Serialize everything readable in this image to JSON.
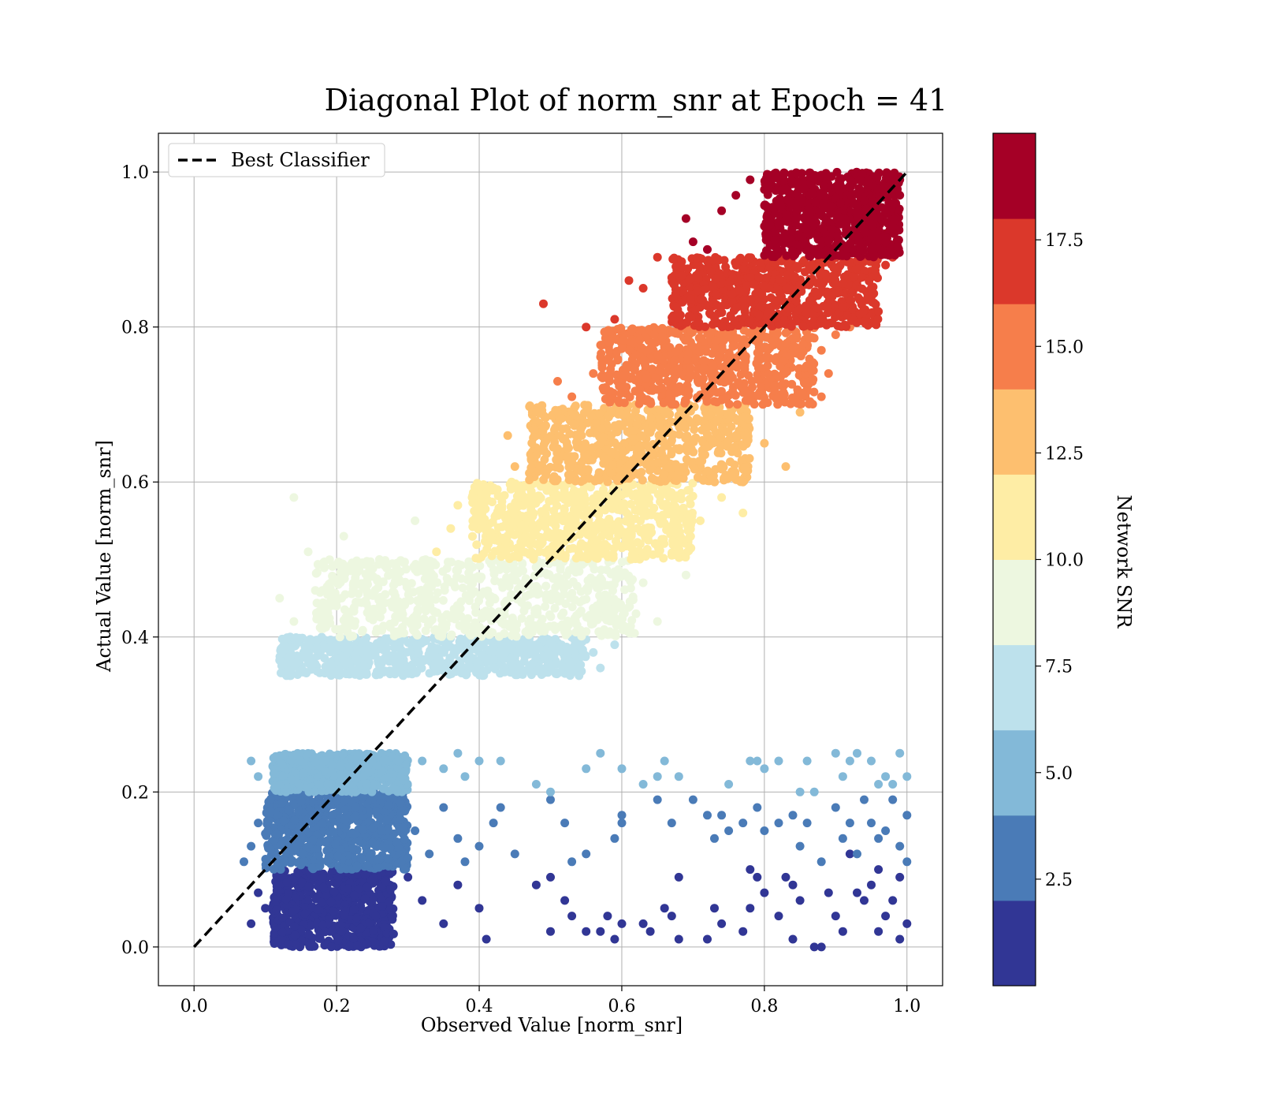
{
  "chart_data": {
    "type": "scatter",
    "title": "Diagonal Plot of norm_snr at Epoch = 41",
    "xlabel": "Observed Value [norm_snr]",
    "ylabel": "Actual Value [norm_snr]",
    "xlim": [
      -0.05,
      1.05
    ],
    "ylim": [
      -0.05,
      1.05
    ],
    "x_ticks": [
      "0.0",
      "0.2",
      "0.4",
      "0.6",
      "0.8",
      "1.0"
    ],
    "y_ticks": [
      "0.0",
      "0.2",
      "0.4",
      "0.6",
      "0.8",
      "1.0"
    ],
    "grid": true,
    "legend": {
      "placement": "upper-left",
      "entries": [
        "Best Classifier"
      ]
    },
    "reference_line": {
      "name": "Best Classifier",
      "style": "dashed",
      "color": "#000000",
      "x": [
        0,
        1
      ],
      "y": [
        0,
        1
      ]
    },
    "colorbar": {
      "label": "Network SNR",
      "range": [
        0,
        20
      ],
      "tick_labels": [
        "2.5",
        "5.0",
        "7.5",
        "10.0",
        "12.5",
        "15.0",
        "17.5"
      ],
      "bands": [
        {
          "from": 0,
          "to": 2,
          "color": "#313695"
        },
        {
          "from": 2,
          "to": 4,
          "color": "#4a7bb7"
        },
        {
          "from": 4,
          "to": 6,
          "color": "#83b9d8"
        },
        {
          "from": 6,
          "to": 8,
          "color": "#bde1ec"
        },
        {
          "from": 8,
          "to": 10,
          "color": "#edf7e0"
        },
        {
          "from": 10,
          "to": 12,
          "color": "#feeda5"
        },
        {
          "from": 12,
          "to": 14,
          "color": "#fdbf6f"
        },
        {
          "from": 14,
          "to": 16,
          "color": "#f67e4b"
        },
        {
          "from": 16,
          "to": 18,
          "color": "#db382b"
        },
        {
          "from": 18,
          "to": 20,
          "color": "#a50026"
        }
      ]
    },
    "series": [
      {
        "snr_band": "0-2",
        "color": "#313695",
        "dense_region": {
          "x": [
            0.11,
            0.28
          ],
          "y": [
            0.0,
            0.1
          ]
        },
        "points": [
          [
            0.08,
            0.03
          ],
          [
            0.09,
            0.07
          ],
          [
            0.1,
            0.05
          ],
          [
            0.3,
            0.09
          ],
          [
            0.32,
            0.06
          ],
          [
            0.35,
            0.03
          ],
          [
            0.37,
            0.08
          ],
          [
            0.4,
            0.05
          ],
          [
            0.41,
            0.01
          ],
          [
            0.48,
            0.08
          ],
          [
            0.5,
            0.09
          ],
          [
            0.5,
            0.02
          ],
          [
            0.52,
            0.06
          ],
          [
            0.53,
            0.04
          ],
          [
            0.55,
            0.02
          ],
          [
            0.57,
            0.02
          ],
          [
            0.58,
            0.04
          ],
          [
            0.59,
            0.01
          ],
          [
            0.6,
            0.03
          ],
          [
            0.63,
            0.03
          ],
          [
            0.64,
            0.02
          ],
          [
            0.66,
            0.05
          ],
          [
            0.67,
            0.04
          ],
          [
            0.68,
            0.09
          ],
          [
            0.68,
            0.01
          ],
          [
            0.72,
            0.01
          ],
          [
            0.73,
            0.05
          ],
          [
            0.74,
            0.03
          ],
          [
            0.77,
            0.02
          ],
          [
            0.78,
            0.1
          ],
          [
            0.78,
            0.05
          ],
          [
            0.79,
            0.09
          ],
          [
            0.8,
            0.07
          ],
          [
            0.82,
            0.04
          ],
          [
            0.83,
            0.09
          ],
          [
            0.84,
            0.08
          ],
          [
            0.84,
            0.01
          ],
          [
            0.85,
            0.06
          ],
          [
            0.87,
            0.0
          ],
          [
            0.88,
            0.0
          ],
          [
            0.89,
            0.07
          ],
          [
            0.9,
            0.04
          ],
          [
            0.91,
            0.02
          ],
          [
            0.92,
            0.12
          ],
          [
            0.93,
            0.07
          ],
          [
            0.94,
            0.06
          ],
          [
            0.95,
            0.08
          ],
          [
            0.96,
            0.1
          ],
          [
            0.97,
            0.04
          ],
          [
            0.98,
            0.06
          ],
          [
            0.99,
            0.09
          ],
          [
            1.0,
            0.03
          ],
          [
            0.99,
            0.01
          ],
          [
            0.96,
            0.02
          ]
        ]
      },
      {
        "snr_band": "2-4",
        "color": "#4a7bb7",
        "dense_region": {
          "x": [
            0.1,
            0.3
          ],
          "y": [
            0.1,
            0.2
          ]
        },
        "points": [
          [
            0.07,
            0.11
          ],
          [
            0.08,
            0.13
          ],
          [
            0.09,
            0.16
          ],
          [
            0.31,
            0.15
          ],
          [
            0.33,
            0.12
          ],
          [
            0.35,
            0.18
          ],
          [
            0.37,
            0.14
          ],
          [
            0.38,
            0.11
          ],
          [
            0.4,
            0.13
          ],
          [
            0.42,
            0.16
          ],
          [
            0.43,
            0.18
          ],
          [
            0.45,
            0.12
          ],
          [
            0.5,
            0.19
          ],
          [
            0.52,
            0.16
          ],
          [
            0.53,
            0.11
          ],
          [
            0.55,
            0.12
          ],
          [
            0.59,
            0.14
          ],
          [
            0.6,
            0.17
          ],
          [
            0.6,
            0.16
          ],
          [
            0.65,
            0.19
          ],
          [
            0.67,
            0.16
          ],
          [
            0.7,
            0.19
          ],
          [
            0.72,
            0.17
          ],
          [
            0.73,
            0.14
          ],
          [
            0.74,
            0.17
          ],
          [
            0.75,
            0.15
          ],
          [
            0.77,
            0.16
          ],
          [
            0.79,
            0.18
          ],
          [
            0.8,
            0.15
          ],
          [
            0.82,
            0.16
          ],
          [
            0.84,
            0.17
          ],
          [
            0.85,
            0.13
          ],
          [
            0.86,
            0.16
          ],
          [
            0.88,
            0.11
          ],
          [
            0.9,
            0.18
          ],
          [
            0.91,
            0.14
          ],
          [
            0.92,
            0.16
          ],
          [
            0.93,
            0.12
          ],
          [
            0.94,
            0.19
          ],
          [
            0.95,
            0.16
          ],
          [
            0.96,
            0.14
          ],
          [
            0.97,
            0.15
          ],
          [
            0.98,
            0.19
          ],
          [
            0.99,
            0.13
          ],
          [
            1.0,
            0.17
          ],
          [
            1.0,
            0.11
          ]
        ]
      },
      {
        "snr_band": "4-6",
        "color": "#83b9d8",
        "dense_region": {
          "x": [
            0.11,
            0.3
          ],
          "y": [
            0.2,
            0.25
          ]
        },
        "points": [
          [
            0.08,
            0.24
          ],
          [
            0.09,
            0.22
          ],
          [
            0.32,
            0.24
          ],
          [
            0.35,
            0.23
          ],
          [
            0.37,
            0.25
          ],
          [
            0.38,
            0.22
          ],
          [
            0.4,
            0.24
          ],
          [
            0.43,
            0.24
          ],
          [
            0.48,
            0.21
          ],
          [
            0.5,
            0.2
          ],
          [
            0.55,
            0.23
          ],
          [
            0.57,
            0.25
          ],
          [
            0.6,
            0.23
          ],
          [
            0.63,
            0.21
          ],
          [
            0.65,
            0.22
          ],
          [
            0.66,
            0.24
          ],
          [
            0.68,
            0.22
          ],
          [
            0.75,
            0.21
          ],
          [
            0.78,
            0.24
          ],
          [
            0.79,
            0.24
          ],
          [
            0.8,
            0.23
          ],
          [
            0.82,
            0.24
          ],
          [
            0.85,
            0.2
          ],
          [
            0.86,
            0.24
          ],
          [
            0.87,
            0.2
          ],
          [
            0.9,
            0.25
          ],
          [
            0.91,
            0.22
          ],
          [
            0.92,
            0.24
          ],
          [
            0.93,
            0.25
          ],
          [
            0.95,
            0.24
          ],
          [
            0.96,
            0.21
          ],
          [
            0.97,
            0.22
          ],
          [
            0.98,
            0.21
          ],
          [
            0.99,
            0.25
          ],
          [
            1.0,
            0.22
          ]
        ]
      },
      {
        "snr_band": "6-8",
        "color": "#bde1ec",
        "dense_region": {
          "x": [
            0.12,
            0.55
          ],
          "y": [
            0.35,
            0.4
          ]
        },
        "points": [
          [
            0.12,
            0.37
          ],
          [
            0.56,
            0.38
          ],
          [
            0.57,
            0.36
          ],
          [
            0.59,
            0.39
          ],
          [
            0.54,
            0.35
          ]
        ]
      },
      {
        "snr_band": "8-10",
        "color": "#edf7e0",
        "dense_region": {
          "x": [
            0.17,
            0.62
          ],
          "y": [
            0.4,
            0.5
          ]
        },
        "points": [
          [
            0.12,
            0.45
          ],
          [
            0.14,
            0.58
          ],
          [
            0.16,
            0.51
          ],
          [
            0.21,
            0.53
          ],
          [
            0.26,
            0.5
          ],
          [
            0.31,
            0.55
          ],
          [
            0.14,
            0.42
          ],
          [
            0.18,
            0.46
          ],
          [
            0.2,
            0.44
          ],
          [
            0.62,
            0.43
          ],
          [
            0.63,
            0.47
          ],
          [
            0.65,
            0.42
          ],
          [
            0.69,
            0.48
          ]
        ]
      },
      {
        "snr_band": "10-12",
        "color": "#feeda5",
        "dense_region": {
          "x": [
            0.39,
            0.7
          ],
          "y": [
            0.5,
            0.6
          ]
        },
        "points": [
          [
            0.34,
            0.51
          ],
          [
            0.36,
            0.54
          ],
          [
            0.37,
            0.57
          ],
          [
            0.39,
            0.58
          ],
          [
            0.71,
            0.55
          ],
          [
            0.74,
            0.58
          ],
          [
            0.77,
            0.56
          ],
          [
            0.68,
            0.51
          ]
        ]
      },
      {
        "snr_band": "12-14",
        "color": "#fdbf6f",
        "dense_region": {
          "x": [
            0.47,
            0.78
          ],
          "y": [
            0.6,
            0.7
          ]
        },
        "points": [
          [
            0.44,
            0.66
          ],
          [
            0.45,
            0.62
          ],
          [
            0.48,
            0.69
          ],
          [
            0.83,
            0.62
          ],
          [
            0.85,
            0.69
          ],
          [
            0.8,
            0.65
          ],
          [
            0.77,
            0.6
          ]
        ]
      },
      {
        "snr_band": "14-16",
        "color": "#f67e4b",
        "dense_region": {
          "x": [
            0.57,
            0.87
          ],
          "y": [
            0.7,
            0.8
          ]
        },
        "points": [
          [
            0.51,
            0.73
          ],
          [
            0.53,
            0.71
          ],
          [
            0.56,
            0.74
          ],
          [
            0.88,
            0.77
          ],
          [
            0.9,
            0.79
          ],
          [
            0.92,
            0.8
          ],
          [
            0.89,
            0.74
          ],
          [
            0.88,
            0.71
          ]
        ]
      },
      {
        "snr_band": "16-18",
        "color": "#db382b",
        "dense_region": {
          "x": [
            0.67,
            0.96
          ],
          "y": [
            0.8,
            0.89
          ]
        },
        "points": [
          [
            0.49,
            0.83
          ],
          [
            0.55,
            0.8
          ],
          [
            0.59,
            0.81
          ],
          [
            0.61,
            0.86
          ],
          [
            0.63,
            0.85
          ],
          [
            0.65,
            0.89
          ],
          [
            0.95,
            0.85
          ],
          [
            0.97,
            0.88
          ],
          [
            0.98,
            0.89
          ],
          [
            0.96,
            0.82
          ]
        ]
      },
      {
        "snr_band": "18-20",
        "color": "#a50026",
        "dense_region": {
          "x": [
            0.8,
            0.99
          ],
          "y": [
            0.89,
            1.0
          ]
        },
        "points": [
          [
            0.69,
            0.94
          ],
          [
            0.7,
            0.91
          ],
          [
            0.72,
            0.9
          ],
          [
            0.74,
            0.95
          ],
          [
            0.76,
            0.97
          ],
          [
            0.78,
            0.99
          ],
          [
            0.8,
            0.93
          ],
          [
            0.82,
            0.96
          ],
          [
            0.97,
            0.91
          ],
          [
            0.99,
            0.97
          ],
          [
            0.99,
            0.99
          ],
          [
            0.98,
            0.93
          ]
        ]
      }
    ]
  }
}
